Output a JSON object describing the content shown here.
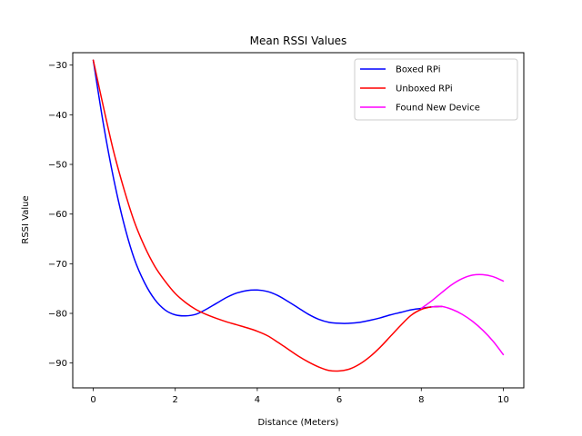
{
  "chart_data": {
    "type": "line",
    "title": "Mean RSSI Values",
    "xlabel": "Distance (Meters)",
    "ylabel": "RSSI Value",
    "xlim": [
      -0.5,
      10.5
    ],
    "ylim": [
      -95,
      -27.5
    ],
    "xticks": [
      0,
      2,
      4,
      6,
      8,
      10
    ],
    "yticks": [
      -90,
      -80,
      -70,
      -60,
      -50,
      -40,
      -30
    ],
    "grid": false,
    "legend_position": "top-right",
    "series": [
      {
        "name": "Boxed RPi",
        "color": "#0000ff",
        "x": [
          0,
          0.25,
          0.5,
          0.75,
          1.0,
          1.25,
          1.5,
          1.75,
          2.0,
          2.25,
          2.5,
          2.75,
          3.0,
          3.25,
          3.5,
          3.75,
          4.0,
          4.25,
          4.5,
          4.75,
          5.0,
          5.25,
          5.5,
          5.75,
          6.0,
          6.25,
          6.5,
          6.75,
          7.0,
          7.25,
          7.5,
          7.75,
          8.0,
          8.25,
          8.5
        ],
        "y": [
          -29.0,
          -42.0,
          -53.0,
          -62.0,
          -69.0,
          -73.8,
          -77.2,
          -79.3,
          -80.3,
          -80.5,
          -80.2,
          -79.2,
          -78.0,
          -76.8,
          -75.9,
          -75.4,
          -75.3,
          -75.6,
          -76.4,
          -77.6,
          -78.9,
          -80.2,
          -81.2,
          -81.8,
          -82.0,
          -82.0,
          -81.8,
          -81.4,
          -80.9,
          -80.3,
          -79.8,
          -79.3,
          -79.0,
          -78.7,
          -78.6
        ]
      },
      {
        "name": "Unboxed RPi",
        "color": "#ff0000",
        "x": [
          0,
          0.25,
          0.5,
          0.75,
          1.0,
          1.25,
          1.5,
          1.75,
          2.0,
          2.25,
          2.5,
          2.75,
          3.0,
          3.25,
          3.5,
          3.75,
          4.0,
          4.25,
          4.5,
          4.75,
          5.0,
          5.25,
          5.5,
          5.75,
          6.0,
          6.25,
          6.5,
          6.75,
          7.0,
          7.25,
          7.5,
          7.75,
          8.0,
          8.25,
          8.5
        ],
        "y": [
          -29.0,
          -38.5,
          -47.5,
          -55.0,
          -61.5,
          -66.5,
          -70.5,
          -73.5,
          -76.0,
          -77.8,
          -79.2,
          -80.2,
          -81.0,
          -81.7,
          -82.3,
          -82.9,
          -83.6,
          -84.5,
          -85.8,
          -87.2,
          -88.6,
          -89.8,
          -90.8,
          -91.5,
          -91.6,
          -91.2,
          -90.2,
          -88.7,
          -86.8,
          -84.6,
          -82.4,
          -80.4,
          -79.2,
          -78.7,
          -78.6
        ]
      },
      {
        "name": "Found New Device",
        "color": "#ff00ff",
        "segments": [
          {
            "x": [
              8.0,
              8.25,
              8.5,
              8.75,
              9.0,
              9.25,
              9.5,
              9.75,
              10.0
            ],
            "y": [
              -79.0,
              -77.5,
              -75.8,
              -74.2,
              -73.0,
              -72.3,
              -72.2,
              -72.6,
              -73.5
            ]
          },
          {
            "x": [
              8.25,
              8.5,
              8.75,
              9.0,
              9.25,
              9.5,
              9.75,
              10.0
            ],
            "y": [
              -78.7,
              -78.6,
              -79.2,
              -80.2,
              -81.6,
              -83.4,
              -85.6,
              -88.3
            ]
          }
        ]
      }
    ]
  }
}
